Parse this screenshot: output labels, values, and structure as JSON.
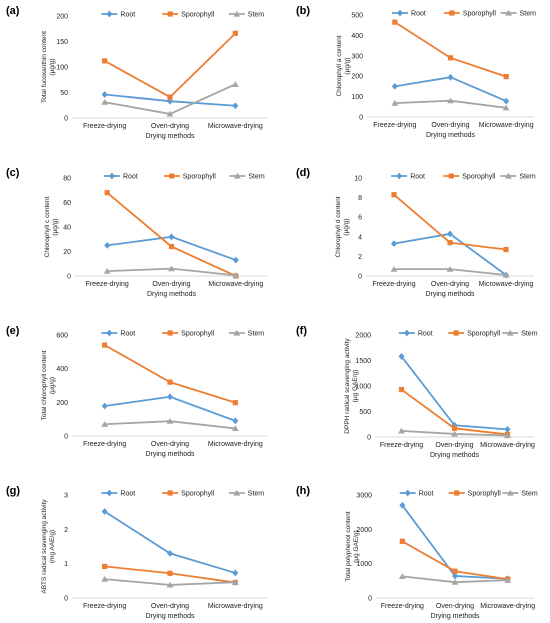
{
  "colors": {
    "Root": "#5b9bd5",
    "Sporophyll": "#ed7d31",
    "Stem": "#a5a5a5",
    "axis": "#d9d9d9",
    "text": "#222222"
  },
  "chart_data": [
    {
      "panel_label": "(a)",
      "type": "line",
      "categories": [
        "Freeze-drying",
        "Oven-drying",
        "Microwave-drying"
      ],
      "xlabel": "Drying methods",
      "ylabel_lines": [
        "Total fucoxanthin content",
        "(μg/g)"
      ],
      "ylim": [
        0,
        200
      ],
      "yticks": [
        "0",
        "50",
        "100",
        "150",
        "200"
      ],
      "grid": false,
      "legend": "top",
      "series": [
        {
          "name": "Root",
          "marker": "diamond",
          "values": [
            46,
            33,
            24
          ]
        },
        {
          "name": "Sporophyll",
          "marker": "square",
          "values": [
            112,
            41,
            166
          ]
        },
        {
          "name": "Stem",
          "marker": "triangle",
          "values": [
            31,
            8,
            66
          ]
        }
      ]
    },
    {
      "panel_label": "(b)",
      "type": "line",
      "categories": [
        "Freeze-drying",
        "Oven-drying",
        "Microwave-drying"
      ],
      "xlabel": "Drying methods",
      "ylabel_lines": [
        "Chlorophyll a content",
        "(μg/g)"
      ],
      "ylim": [
        0,
        500
      ],
      "yticks": [
        "0",
        "100",
        "200",
        "300",
        "400",
        "500"
      ],
      "grid": false,
      "legend": "top",
      "series": [
        {
          "name": "Root",
          "marker": "diamond",
          "values": [
            150,
            195,
            78
          ]
        },
        {
          "name": "Sporophyll",
          "marker": "square",
          "values": [
            465,
            290,
            198
          ]
        },
        {
          "name": "Stem",
          "marker": "triangle",
          "values": [
            68,
            80,
            45
          ]
        }
      ]
    },
    {
      "panel_label": "(c)",
      "type": "line",
      "categories": [
        "Freeze-drying",
        "Oven-drying",
        "Microwave-drying"
      ],
      "xlabel": "Drying methods",
      "ylabel_lines": [
        "Chlorophyll c content",
        "(μg/g)"
      ],
      "ylim": [
        0,
        80
      ],
      "yticks": [
        "0",
        "20",
        "40",
        "60",
        "80"
      ],
      "grid": false,
      "legend": "top",
      "series": [
        {
          "name": "Root",
          "marker": "diamond",
          "values": [
            25,
            32,
            13
          ]
        },
        {
          "name": "Sporophyll",
          "marker": "square",
          "values": [
            68,
            24,
            0
          ]
        },
        {
          "name": "Stem",
          "marker": "triangle",
          "values": [
            4,
            6,
            0.5
          ]
        }
      ]
    },
    {
      "panel_label": "(d)",
      "type": "line",
      "categories": [
        "Freeze-drying",
        "Oven-drying",
        "Microwave-drying"
      ],
      "xlabel": "Drying methods",
      "ylabel_lines": [
        "Chlorophyll d content",
        "(μg/g)"
      ],
      "ylim": [
        0,
        10
      ],
      "yticks": [
        "0",
        "2",
        "4",
        "6",
        "8",
        "10"
      ],
      "grid": false,
      "legend": "top",
      "series": [
        {
          "name": "Root",
          "marker": "diamond",
          "values": [
            3.3,
            4.3,
            0.1
          ]
        },
        {
          "name": "Sporophyll",
          "marker": "square",
          "values": [
            8.3,
            3.4,
            2.7
          ]
        },
        {
          "name": "Stem",
          "marker": "triangle",
          "values": [
            0.7,
            0.7,
            0.1
          ]
        }
      ]
    },
    {
      "panel_label": "(e)",
      "type": "line",
      "categories": [
        "Freeze-drying",
        "Oven-drying",
        "Microwave-drying"
      ],
      "xlabel": "Drying methods",
      "ylabel_lines": [
        "Total chlorophyll content",
        "(μg/g)"
      ],
      "ylim": [
        0,
        600
      ],
      "yticks": [
        "0",
        "200",
        "400",
        "600"
      ],
      "grid": false,
      "legend": "top",
      "series": [
        {
          "name": "Root",
          "marker": "diamond",
          "values": [
            178,
            233,
            90
          ]
        },
        {
          "name": "Sporophyll",
          "marker": "square",
          "values": [
            540,
            320,
            198
          ]
        },
        {
          "name": "Stem",
          "marker": "triangle",
          "values": [
            70,
            88,
            45
          ]
        }
      ]
    },
    {
      "panel_label": "(f)",
      "type": "line",
      "categories": [
        "Freeze-drying",
        "Oven-drying",
        "Microwave-drying"
      ],
      "xlabel": "Drying methods",
      "ylabel_lines": [
        "DPPH radical scavenging activity",
        "(μg GAE/g)"
      ],
      "ylim": [
        0,
        2000
      ],
      "yticks": [
        "0",
        "500",
        "1000",
        "1500",
        "2000"
      ],
      "grid": false,
      "legend": "top",
      "series": [
        {
          "name": "Root",
          "marker": "diamond",
          "values": [
            1580,
            230,
            150
          ]
        },
        {
          "name": "Sporophyll",
          "marker": "square",
          "values": [
            930,
            170,
            50
          ]
        },
        {
          "name": "Stem",
          "marker": "triangle",
          "values": [
            120,
            60,
            30
          ]
        }
      ]
    },
    {
      "panel_label": "(g)",
      "type": "line",
      "categories": [
        "Freeze-drying",
        "Oven-drying",
        "Microwave-drying"
      ],
      "xlabel": "Drying methods",
      "ylabel_lines": [
        "ABTS radical scavenging activity",
        "(mg AAE/g)"
      ],
      "ylim": [
        0,
        3
      ],
      "yticks": [
        "0",
        "1",
        "2",
        "3"
      ],
      "grid": false,
      "legend": "top",
      "series": [
        {
          "name": "Root",
          "marker": "diamond",
          "values": [
            2.52,
            1.3,
            0.73
          ]
        },
        {
          "name": "Sporophyll",
          "marker": "square",
          "values": [
            0.92,
            0.72,
            0.45
          ]
        },
        {
          "name": "Stem",
          "marker": "triangle",
          "values": [
            0.55,
            0.38,
            0.46
          ]
        }
      ]
    },
    {
      "panel_label": "(h)",
      "type": "line",
      "categories": [
        "Freeze-drying",
        "Oven-drying",
        "Microwave-drying"
      ],
      "xlabel": "Drying methods",
      "ylabel_lines": [
        "Total polyphenol content",
        "(μg GAE/g)"
      ],
      "ylim": [
        0,
        3000
      ],
      "yticks": [
        "0",
        "1000",
        "2000",
        "3000"
      ],
      "grid": false,
      "legend": "top",
      "series": [
        {
          "name": "Root",
          "marker": "diamond",
          "values": [
            2700,
            640,
            560
          ]
        },
        {
          "name": "Sporophyll",
          "marker": "square",
          "values": [
            1650,
            780,
            550
          ]
        },
        {
          "name": "Stem",
          "marker": "triangle",
          "values": [
            630,
            460,
            520
          ]
        }
      ]
    }
  ]
}
